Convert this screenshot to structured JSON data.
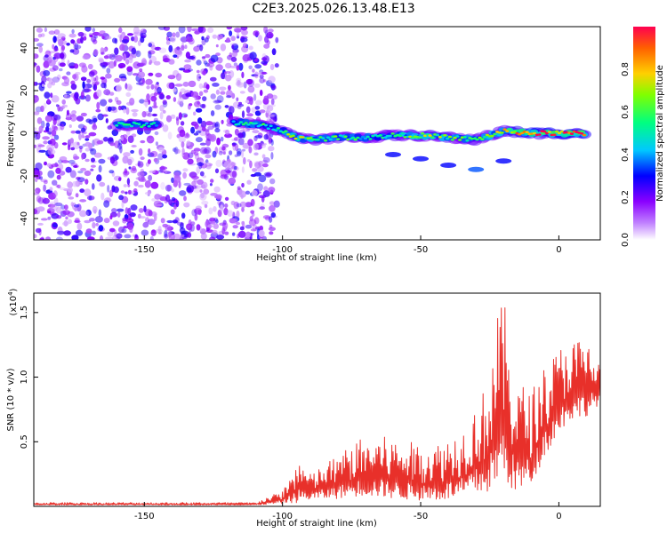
{
  "title": "C2E3.2025.026.13.48.E13",
  "chart_data": [
    {
      "type": "heatmap",
      "xlabel": "Height of straight line (km)",
      "ylabel": "Frequency (Hz)",
      "xlim": [
        -190,
        15
      ],
      "ylim": [
        -50,
        50
      ],
      "xticks": [
        -150,
        -100,
        -50,
        0
      ],
      "yticks": [
        -40,
        -20,
        0,
        20,
        40
      ],
      "grid": false,
      "colorbar": {
        "label": "Normalized spectral amplitude",
        "range": [
          0,
          1
        ],
        "ticks": [
          "0.0",
          "0.2",
          "0.4",
          "0.6",
          "0.8"
        ],
        "colormap": "rainbow",
        "colors": [
          "#ffffff",
          "#8a00ff",
          "#0000ff",
          "#00c8ff",
          "#00ff80",
          "#80ff00",
          "#ffd000",
          "#ff6000",
          "#ff0040"
        ]
      },
      "noise_region": {
        "x": [
          -190,
          -110
        ],
        "intensity": 0.25
      },
      "ridge": [
        {
          "x": -160,
          "y": 4,
          "a": 0.5
        },
        {
          "x": -150,
          "y": 4,
          "a": 0.5
        },
        {
          "x": -115,
          "y": 5,
          "a": 0.45
        },
        {
          "x": -105,
          "y": 3,
          "a": 0.55
        },
        {
          "x": -100,
          "y": 1,
          "a": 0.6
        },
        {
          "x": -95,
          "y": -2,
          "a": 0.7
        },
        {
          "x": -90,
          "y": -3,
          "a": 0.6
        },
        {
          "x": -80,
          "y": -2,
          "a": 0.55
        },
        {
          "x": -70,
          "y": -2,
          "a": 0.5
        },
        {
          "x": -60,
          "y": -1,
          "a": 0.55
        },
        {
          "x": -50,
          "y": -1,
          "a": 0.65
        },
        {
          "x": -40,
          "y": -2,
          "a": 0.6
        },
        {
          "x": -30,
          "y": -3,
          "a": 0.55
        },
        {
          "x": -20,
          "y": 1,
          "a": 0.7
        },
        {
          "x": -10,
          "y": 0,
          "a": 0.9
        },
        {
          "x": 0,
          "y": 0,
          "a": 0.95
        },
        {
          "x": 10,
          "y": 0,
          "a": 0.9
        }
      ],
      "branch": [
        {
          "x": -30,
          "y": -17,
          "a": 0.35
        },
        {
          "x": -40,
          "y": -15,
          "a": 0.3
        },
        {
          "x": -50,
          "y": -12,
          "a": 0.3
        },
        {
          "x": -60,
          "y": -10,
          "a": 0.3
        },
        {
          "x": -20,
          "y": -13,
          "a": 0.3
        }
      ]
    },
    {
      "type": "line",
      "xlabel": "Height of straight line (km)",
      "ylabel": "SNR (10 * v/v)",
      "scale_label": "(x10",
      "scale_exp": "4",
      "scale_suffix": ")",
      "xlim": [
        -190,
        15
      ],
      "ylim": [
        0,
        1.65
      ],
      "xticks": [
        -150,
        -100,
        -50,
        0
      ],
      "yticks": [
        "0.5",
        "1.0",
        "1.5"
      ],
      "grid": false,
      "series": [
        {
          "color": "#e8302a",
          "envelope": [
            {
              "x": -190,
              "lo": 0.01,
              "hi": 0.03
            },
            {
              "x": -110,
              "lo": 0.01,
              "hi": 0.03
            },
            {
              "x": -100,
              "lo": 0.02,
              "hi": 0.12
            },
            {
              "x": -94,
              "lo": 0.03,
              "hi": 0.38
            },
            {
              "x": -90,
              "lo": 0.05,
              "hi": 0.25
            },
            {
              "x": -80,
              "lo": 0.06,
              "hi": 0.4
            },
            {
              "x": -72,
              "lo": 0.08,
              "hi": 0.52
            },
            {
              "x": -65,
              "lo": 0.07,
              "hi": 0.55
            },
            {
              "x": -55,
              "lo": 0.05,
              "hi": 0.5
            },
            {
              "x": -45,
              "lo": 0.04,
              "hi": 0.48
            },
            {
              "x": -35,
              "lo": 0.06,
              "hi": 0.6
            },
            {
              "x": -26,
              "lo": 0.1,
              "hi": 0.95
            },
            {
              "x": -22,
              "lo": 0.15,
              "hi": 1.5
            },
            {
              "x": -20,
              "lo": 0.2,
              "hi": 1.62
            },
            {
              "x": -16,
              "lo": 0.1,
              "hi": 1.0
            },
            {
              "x": -10,
              "lo": 0.15,
              "hi": 0.9
            },
            {
              "x": -5,
              "lo": 0.4,
              "hi": 1.1
            },
            {
              "x": 3,
              "lo": 0.65,
              "hi": 1.3
            },
            {
              "x": 10,
              "lo": 0.7,
              "hi": 1.3
            },
            {
              "x": 15,
              "lo": 0.8,
              "hi": 1.1
            }
          ]
        }
      ]
    }
  ]
}
